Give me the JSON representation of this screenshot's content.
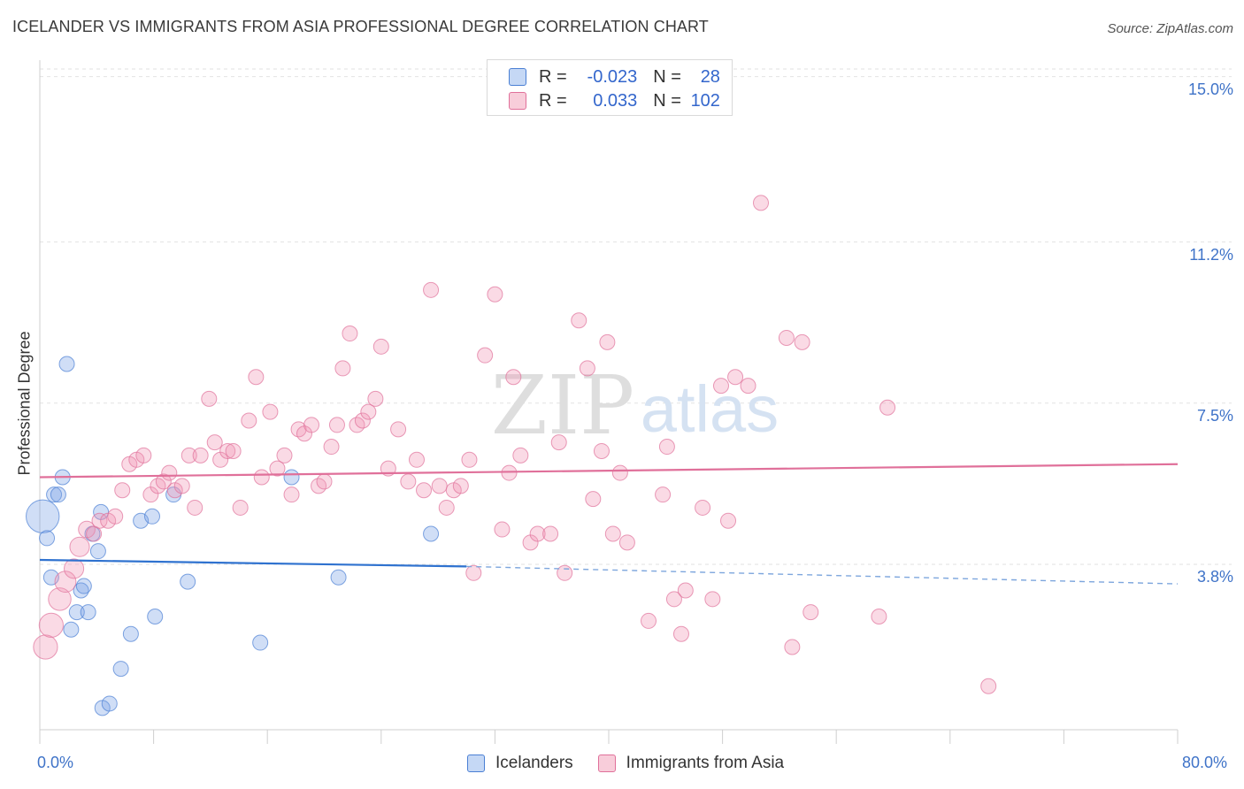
{
  "title": "ICELANDER VS IMMIGRANTS FROM ASIA PROFESSIONAL DEGREE CORRELATION CHART",
  "source": "Source: ZipAtlas.com",
  "watermark": {
    "zip": "ZIP",
    "atlas": "atlas"
  },
  "legend": {
    "rows": [
      {
        "r_label": "R =",
        "r_value": "-0.023",
        "n_label": "N =",
        "n_value": "28",
        "color": "#4a7fd4"
      },
      {
        "r_label": "R =",
        "r_value": "0.033",
        "n_label": "N =",
        "n_value": "102",
        "color": "#e0709a"
      }
    ]
  },
  "bottom_legend": [
    "Icelanders",
    "Immigrants from Asia"
  ],
  "chart_data": {
    "type": "scatter",
    "title": "ICELANDER VS IMMIGRANTS FROM ASIA PROFESSIONAL DEGREE CORRELATION CHART",
    "xlabel": "",
    "ylabel": "Professional Degree",
    "xlim": [
      0,
      80
    ],
    "ylim": [
      0,
      15.5
    ],
    "x_tick_labels": [
      "0.0%",
      "80.0%"
    ],
    "y_ticks": [
      3.8,
      7.5,
      11.2,
      15.0
    ],
    "y_tick_labels": [
      "3.8%",
      "7.5%",
      "11.2%",
      "15.0%"
    ],
    "grid": "horizontal dashed",
    "series": [
      {
        "name": "Icelanders",
        "color": "#4a7fd4",
        "fill": "rgba(120,160,230,0.35)",
        "points": [
          [
            0.2,
            4.9,
            2.2
          ],
          [
            0.5,
            4.4,
            1
          ],
          [
            0.8,
            3.5,
            1
          ],
          [
            1,
            5.4,
            1
          ],
          [
            1.3,
            5.4,
            1
          ],
          [
            1.6,
            5.8,
            1
          ],
          [
            1.9,
            8.4,
            1
          ],
          [
            2.2,
            2.3,
            1
          ],
          [
            2.6,
            2.7,
            1
          ],
          [
            2.9,
            3.2,
            1
          ],
          [
            3.1,
            3.3,
            1
          ],
          [
            3.4,
            2.7,
            1
          ],
          [
            3.7,
            4.5,
            1
          ],
          [
            4.1,
            4.1,
            1
          ],
          [
            4.3,
            5,
            1
          ],
          [
            4.4,
            0.5,
            1
          ],
          [
            4.9,
            0.6,
            1
          ],
          [
            5.7,
            1.4,
            1
          ],
          [
            6.4,
            2.2,
            1
          ],
          [
            7.1,
            4.8,
            1
          ],
          [
            7.9,
            4.9,
            1
          ],
          [
            8.1,
            2.6,
            1
          ],
          [
            9.4,
            5.4,
            1
          ],
          [
            10.4,
            3.4,
            1
          ],
          [
            15.5,
            2,
            1
          ],
          [
            17.7,
            5.8,
            1
          ],
          [
            21,
            3.5,
            1
          ],
          [
            27.5,
            4.5,
            1
          ]
        ]
      },
      {
        "name": "Immigrants from Asia",
        "color": "#e0709a",
        "fill": "rgba(240,150,180,0.35)",
        "points": [
          [
            0.4,
            1.9,
            1.6
          ],
          [
            0.8,
            2.4,
            1.6
          ],
          [
            1.4,
            3,
            1.5
          ],
          [
            1.8,
            3.4,
            1.4
          ],
          [
            2.4,
            3.7,
            1.3
          ],
          [
            2.8,
            4.2,
            1.3
          ],
          [
            3.3,
            4.6,
            1.1
          ],
          [
            3.8,
            4.5,
            1
          ],
          [
            4.2,
            4.8,
            1
          ],
          [
            4.8,
            4.8,
            1
          ],
          [
            5.3,
            4.9,
            1
          ],
          [
            5.8,
            5.5,
            1
          ],
          [
            6.3,
            6.1,
            1
          ],
          [
            6.8,
            6.2,
            1
          ],
          [
            7.3,
            6.3,
            1
          ],
          [
            7.8,
            5.4,
            1
          ],
          [
            8.3,
            5.6,
            1
          ],
          [
            8.7,
            5.7,
            1
          ],
          [
            9.1,
            5.9,
            1
          ],
          [
            9.5,
            5.5,
            1
          ],
          [
            10,
            5.6,
            1
          ],
          [
            10.5,
            6.3,
            1
          ],
          [
            10.9,
            5.1,
            1
          ],
          [
            11.3,
            6.3,
            1
          ],
          [
            11.9,
            7.6,
            1
          ],
          [
            12.3,
            6.6,
            1
          ],
          [
            12.7,
            6.2,
            1
          ],
          [
            13.2,
            6.4,
            1
          ],
          [
            13.6,
            6.4,
            1
          ],
          [
            14.1,
            5.1,
            1
          ],
          [
            14.7,
            7.1,
            1
          ],
          [
            15.2,
            8.1,
            1
          ],
          [
            15.6,
            5.8,
            1
          ],
          [
            16.2,
            7.3,
            1
          ],
          [
            16.7,
            6,
            1
          ],
          [
            17.2,
            6.3,
            1
          ],
          [
            17.7,
            5.4,
            1
          ],
          [
            18.2,
            6.9,
            1
          ],
          [
            18.6,
            6.8,
            1
          ],
          [
            19.1,
            7,
            1
          ],
          [
            19.6,
            5.6,
            1
          ],
          [
            20,
            5.7,
            1
          ],
          [
            20.5,
            6.5,
            1
          ],
          [
            20.9,
            7,
            1
          ],
          [
            21.3,
            8.3,
            1
          ],
          [
            21.8,
            9.1,
            1
          ],
          [
            22.3,
            7,
            1
          ],
          [
            22.7,
            7.1,
            1
          ],
          [
            23.1,
            7.3,
            1
          ],
          [
            23.6,
            7.6,
            1
          ],
          [
            24,
            8.8,
            1
          ],
          [
            24.5,
            6,
            1
          ],
          [
            25.2,
            6.9,
            1
          ],
          [
            25.9,
            5.7,
            1
          ],
          [
            26.5,
            6.2,
            1
          ],
          [
            27,
            5.5,
            1
          ],
          [
            27.5,
            10.1,
            1
          ],
          [
            28.1,
            5.6,
            1
          ],
          [
            28.6,
            5.1,
            1
          ],
          [
            29.1,
            5.5,
            1
          ],
          [
            29.6,
            5.6,
            1
          ],
          [
            30.2,
            6.2,
            1
          ],
          [
            30.5,
            3.6,
            1
          ],
          [
            31.3,
            8.6,
            1
          ],
          [
            32,
            10,
            1
          ],
          [
            32.5,
            4.6,
            1
          ],
          [
            33,
            5.9,
            1
          ],
          [
            33.3,
            8.1,
            1
          ],
          [
            33.8,
            6.3,
            1
          ],
          [
            34.5,
            4.3,
            1
          ],
          [
            35,
            4.5,
            1
          ],
          [
            35.9,
            4.5,
            1
          ],
          [
            36.5,
            6.6,
            1
          ],
          [
            36.9,
            3.6,
            1
          ],
          [
            37.9,
            9.4,
            1
          ],
          [
            38.5,
            8.3,
            1
          ],
          [
            38.9,
            5.3,
            1
          ],
          [
            39.5,
            6.4,
            1
          ],
          [
            39.9,
            8.9,
            1
          ],
          [
            40.3,
            4.5,
            1
          ],
          [
            40.8,
            5.9,
            1
          ],
          [
            41.3,
            4.3,
            1
          ],
          [
            42.8,
            2.5,
            1
          ],
          [
            43.8,
            5.4,
            1
          ],
          [
            44.1,
            6.5,
            1
          ],
          [
            44.6,
            3,
            1
          ],
          [
            45.1,
            2.2,
            1
          ],
          [
            45.4,
            3.2,
            1
          ],
          [
            46.6,
            5.1,
            1
          ],
          [
            47.3,
            3,
            1
          ],
          [
            47.9,
            7.9,
            1
          ],
          [
            48.4,
            4.8,
            1
          ],
          [
            48.9,
            8.1,
            1
          ],
          [
            49.8,
            7.9,
            1
          ],
          [
            50.7,
            12.1,
            1
          ],
          [
            52.5,
            9,
            1
          ],
          [
            52.9,
            1.9,
            1
          ],
          [
            53.6,
            8.9,
            1
          ],
          [
            54.2,
            2.7,
            1
          ],
          [
            59,
            2.6,
            1
          ],
          [
            59.6,
            7.4,
            1
          ],
          [
            66.7,
            1,
            1
          ]
        ]
      }
    ],
    "trend_lines": [
      {
        "series": "Icelanders",
        "from": [
          0,
          3.9
        ],
        "to": [
          30,
          3.75
        ],
        "dashed_to": [
          80,
          3.35
        ]
      },
      {
        "series": "Immigrants from Asia",
        "from": [
          0,
          5.8
        ],
        "to": [
          80,
          6.1
        ]
      }
    ]
  }
}
